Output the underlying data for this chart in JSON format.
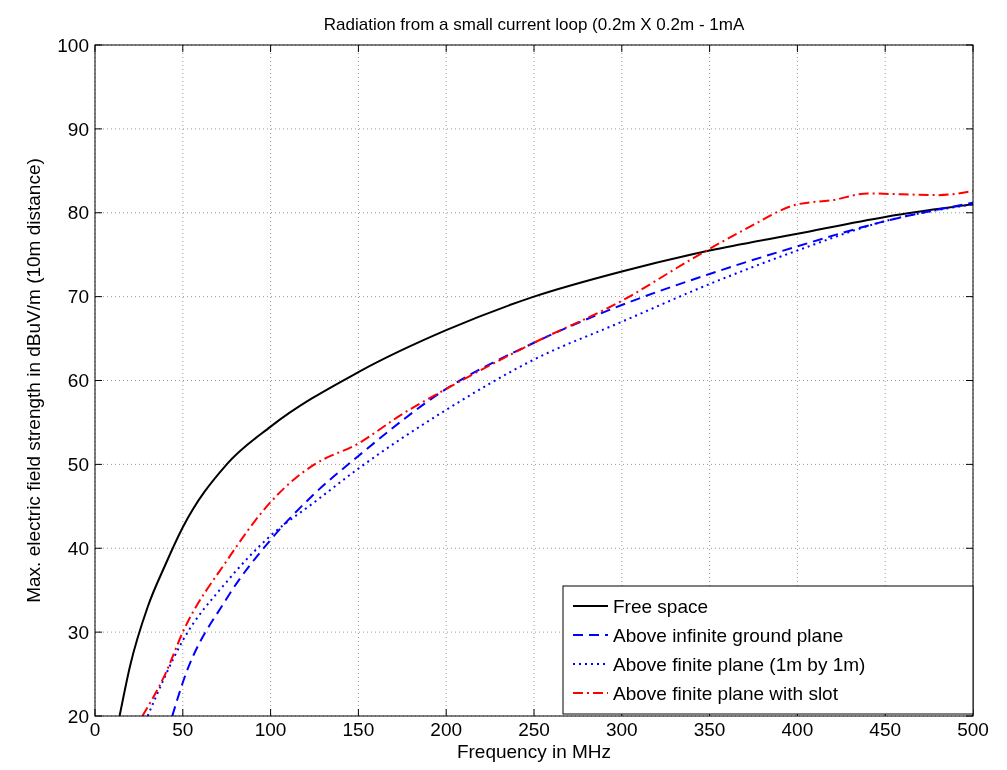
{
  "chart_data": {
    "type": "line",
    "title": "Radiation from a small current loop (0.2m X 0.2m - 1mA",
    "xlabel": "Frequency in MHz",
    "ylabel": "Max. electric field strength in dBuV/m (10m distance)",
    "xlim": [
      0,
      500
    ],
    "ylim": [
      20,
      100
    ],
    "xticks": [
      0,
      50,
      100,
      150,
      200,
      250,
      300,
      350,
      400,
      450,
      500
    ],
    "yticks": [
      20,
      30,
      40,
      50,
      60,
      70,
      80,
      90,
      100
    ],
    "grid": true,
    "legend": "bottom right",
    "series": [
      {
        "name": "Free space",
        "color": "#000000",
        "line_style": "solid",
        "x": [
          14,
          20,
          30,
          40,
          50,
          75,
          100,
          150,
          200,
          250,
          300,
          350,
          400,
          450,
          500
        ],
        "values": [
          20,
          26,
          33,
          38,
          42.5,
          50,
          54.5,
          61,
          66,
          70,
          73,
          75.5,
          77.5,
          79.5,
          81
        ]
      },
      {
        "name": "Above infinite ground plane",
        "color": "#0000ff",
        "line_style": "dashed",
        "x": [
          44,
          50,
          75,
          100,
          125,
          150,
          200,
          250,
          300,
          350,
          400,
          450,
          500
        ],
        "values": [
          20,
          24,
          34,
          41,
          46.5,
          51,
          59,
          64.5,
          69,
          72.7,
          76,
          79,
          81.2
        ]
      },
      {
        "name": "Above finite plane (1m by 1m)",
        "color": "#0000ff",
        "line_style": "dotted",
        "x": [
          30,
          50,
          75,
          100,
          125,
          150,
          200,
          250,
          300,
          350,
          400,
          450,
          500
        ],
        "values": [
          20,
          29,
          36,
          41.5,
          45.5,
          49.5,
          56.5,
          62.5,
          67,
          71.5,
          75.5,
          79,
          81
        ]
      },
      {
        "name": "Above finite plane with slot",
        "color": "#ff0000",
        "line_style": "dashdot",
        "x": [
          27,
          40,
          50,
          75,
          100,
          115,
          125,
          150,
          175,
          200,
          250,
          300,
          340,
          370,
          400,
          420,
          440,
          460,
          480,
          500
        ],
        "values": [
          20,
          25,
          30,
          38.5,
          45.5,
          48.5,
          50,
          52.5,
          56,
          59,
          64.5,
          69.5,
          74.5,
          78,
          81,
          81.5,
          82.3,
          82.2,
          82.1,
          82.6
        ]
      }
    ]
  }
}
